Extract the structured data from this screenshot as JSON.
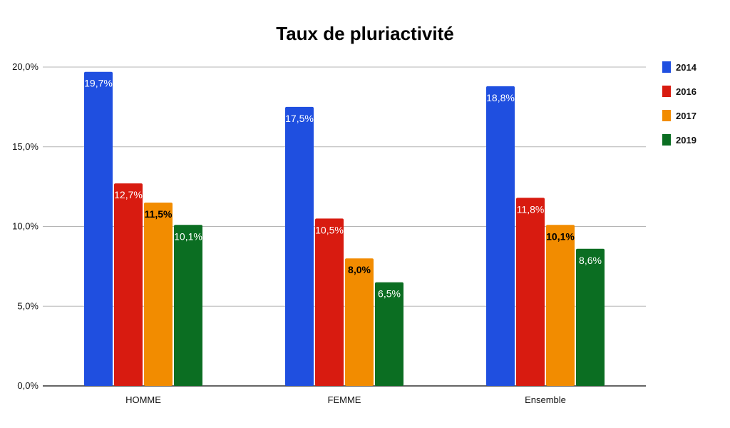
{
  "chart_data": {
    "type": "bar",
    "title": "Taux de pluriactivité",
    "categories": [
      "HOMME",
      "FEMME",
      "Ensemble"
    ],
    "series": [
      {
        "name": "2014",
        "color": "#1f4fe0",
        "label_color": "#ffffff",
        "values": [
          19.7,
          17.5,
          18.8
        ],
        "labels": [
          "19,7%",
          "17,5%",
          "18,8%"
        ]
      },
      {
        "name": "2016",
        "color": "#d81b10",
        "label_color": "#ffffff",
        "values": [
          12.7,
          10.5,
          11.8
        ],
        "labels": [
          "12,7%",
          "10,5%",
          "11,8%"
        ]
      },
      {
        "name": "2017",
        "color": "#f28c00",
        "label_color": "#000000",
        "values": [
          11.5,
          8.0,
          10.1
        ],
        "labels": [
          "11,5%",
          "8,0%",
          "10,1%"
        ]
      },
      {
        "name": "2019",
        "color": "#0b6e22",
        "label_color": "#ffffff",
        "values": [
          10.1,
          6.5,
          8.6
        ],
        "labels": [
          "10,1%",
          "6,5%",
          "8,6%"
        ]
      }
    ],
    "ylim": [
      0,
      20
    ],
    "yticks": [
      {
        "value": 0,
        "label": "0,0%"
      },
      {
        "value": 5,
        "label": "5,0%"
      },
      {
        "value": 10,
        "label": "10,0%"
      },
      {
        "value": 15,
        "label": "15,0%"
      },
      {
        "value": 20,
        "label": "20,0%"
      }
    ],
    "xlabel": "",
    "ylabel": "",
    "grid": true,
    "legend": "right"
  }
}
